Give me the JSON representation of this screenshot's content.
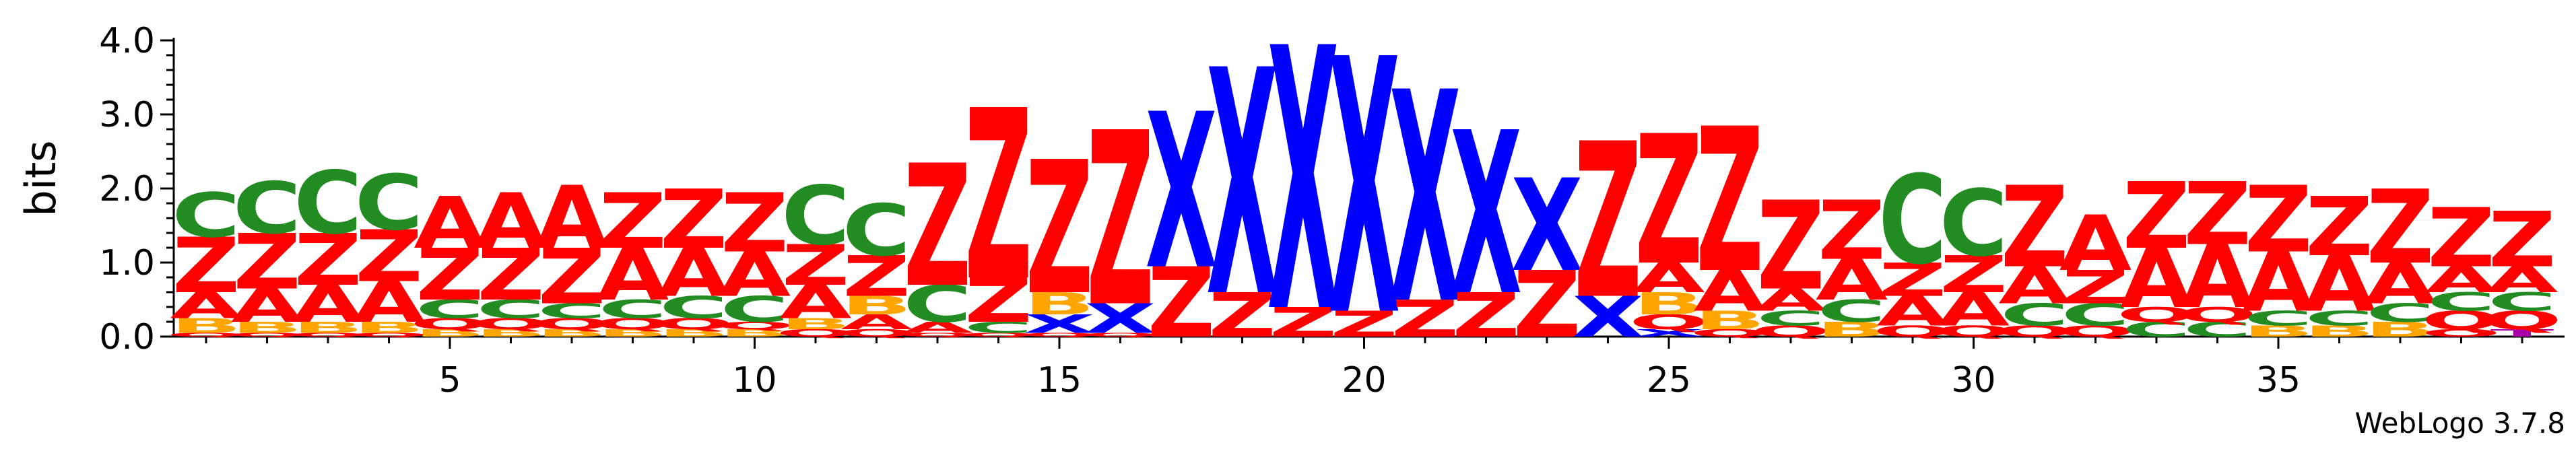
{
  "chart_data": {
    "type": "sequence-logo",
    "ylabel": "bits",
    "ylim": [
      0,
      4.0
    ],
    "y_ticks": [
      "0.0",
      "1.0",
      "2.0",
      "3.0",
      "4.0"
    ],
    "x_ticks": [
      "5",
      "10",
      "15",
      "20",
      "25",
      "30",
      "35"
    ],
    "positions": [
      1,
      2,
      3,
      4,
      5,
      6,
      7,
      8,
      9,
      10,
      11,
      12,
      13,
      14,
      15,
      16,
      17,
      18,
      19,
      20,
      21,
      22,
      23,
      24,
      25,
      26,
      27,
      28,
      29,
      30,
      31,
      32,
      33,
      34,
      35,
      36,
      37,
      38,
      39
    ],
    "colors": {
      "A": "#ff0000",
      "Z": "#ff0000",
      "C": "#228b22",
      "X": "#0000ff",
      "B": "#ffa500",
      "Q": "#ff0000",
      "O": "#ff0000",
      "T": "#aa00aa"
    },
    "stacks": [
      [
        [
          "Q",
          0.05
        ],
        [
          "B",
          0.2
        ],
        [
          "A",
          0.35
        ],
        [
          "Z",
          0.75
        ],
        [
          "C",
          0.6
        ]
      ],
      [
        [
          "Q",
          0.05
        ],
        [
          "B",
          0.15
        ],
        [
          "A",
          0.45
        ],
        [
          "Z",
          0.75
        ],
        [
          "C",
          0.7
        ]
      ],
      [
        [
          "Q",
          0.05
        ],
        [
          "B",
          0.15
        ],
        [
          "A",
          0.5
        ],
        [
          "Z",
          0.7
        ],
        [
          "C",
          0.85
        ]
      ],
      [
        [
          "Q",
          0.05
        ],
        [
          "B",
          0.15
        ],
        [
          "A",
          0.55
        ],
        [
          "Z",
          0.7
        ],
        [
          "C",
          0.75
        ]
      ],
      [
        [
          "B",
          0.1
        ],
        [
          "Q",
          0.15
        ],
        [
          "C",
          0.25
        ],
        [
          "Z",
          0.7
        ],
        [
          "A",
          0.7
        ]
      ],
      [
        [
          "B",
          0.1
        ],
        [
          "Q",
          0.15
        ],
        [
          "C",
          0.25
        ],
        [
          "Z",
          0.7
        ],
        [
          "A",
          0.75
        ]
      ],
      [
        [
          "B",
          0.1
        ],
        [
          "Q",
          0.15
        ],
        [
          "C",
          0.2
        ],
        [
          "Z",
          0.75
        ],
        [
          "A",
          0.85
        ]
      ],
      [
        [
          "B",
          0.1
        ],
        [
          "Q",
          0.15
        ],
        [
          "C",
          0.25
        ],
        [
          "A",
          0.7
        ],
        [
          "Z",
          0.75
        ]
      ],
      [
        [
          "B",
          0.1
        ],
        [
          "Q",
          0.15
        ],
        [
          "C",
          0.3
        ],
        [
          "A",
          0.65
        ],
        [
          "Z",
          0.8
        ]
      ],
      [
        [
          "B",
          0.1
        ],
        [
          "Q",
          0.1
        ],
        [
          "C",
          0.35
        ],
        [
          "A",
          0.6
        ],
        [
          "Z",
          0.8
        ]
      ],
      [
        [
          "Q",
          0.1
        ],
        [
          "B",
          0.15
        ],
        [
          "A",
          0.45
        ],
        [
          "Z",
          0.55
        ],
        [
          "C",
          0.8
        ]
      ],
      [
        [
          "Q",
          0.1
        ],
        [
          "A",
          0.2
        ],
        [
          "B",
          0.25
        ],
        [
          "Z",
          0.55
        ],
        [
          "C",
          0.7
        ]
      ],
      [
        [
          "Q",
          0.05
        ],
        [
          "A",
          0.15
        ],
        [
          "C",
          0.5
        ],
        [
          "Z",
          1.65
        ]
      ],
      [
        [
          "Q",
          0.05
        ],
        [
          "C",
          0.15
        ],
        [
          "Z",
          0.6
        ],
        [
          "Z",
          2.3
        ]
      ],
      [
        [
          "Q",
          0.05
        ],
        [
          "X",
          0.25
        ],
        [
          "B",
          0.3
        ],
        [
          "Z",
          1.8
        ]
      ],
      [
        [
          "Q",
          0.05
        ],
        [
          "X",
          0.4
        ],
        [
          "Z",
          2.35
        ]
      ],
      [
        [
          "Z",
          0.95
        ],
        [
          "X",
          2.1
        ]
      ],
      [
        [
          "Z",
          0.6
        ],
        [
          "X",
          3.05
        ]
      ],
      [
        [
          "Z",
          0.4
        ],
        [
          "X",
          3.55
        ]
      ],
      [
        [
          "Z",
          0.35
        ],
        [
          "X",
          3.45
        ]
      ],
      [
        [
          "Z",
          0.5
        ],
        [
          "X",
          2.85
        ]
      ],
      [
        [
          "Z",
          0.6
        ],
        [
          "X",
          2.2
        ]
      ],
      [
        [
          "Z",
          0.9
        ],
        [
          "X",
          1.25
        ]
      ],
      [
        [
          "X",
          0.55
        ],
        [
          "Z",
          2.1
        ]
      ],
      [
        [
          "X",
          0.1
        ],
        [
          "Q",
          0.2
        ],
        [
          "B",
          0.3
        ],
        [
          "A",
          0.4
        ],
        [
          "Z",
          1.75
        ]
      ],
      [
        [
          "Q",
          0.1
        ],
        [
          "B",
          0.25
        ],
        [
          "A",
          0.55
        ],
        [
          "Z",
          1.95
        ]
      ],
      [
        [
          "Q",
          0.15
        ],
        [
          "C",
          0.2
        ],
        [
          "A",
          0.3
        ],
        [
          "Z",
          1.2
        ]
      ],
      [
        [
          "B",
          0.2
        ],
        [
          "C",
          0.3
        ],
        [
          "A",
          0.55
        ],
        [
          "Z",
          0.8
        ]
      ],
      [
        [
          "Q",
          0.15
        ],
        [
          "A",
          0.4
        ],
        [
          "Z",
          0.45
        ],
        [
          "C",
          1.2
        ]
      ],
      [
        [
          "Q",
          0.15
        ],
        [
          "A",
          0.45
        ],
        [
          "Z",
          0.5
        ],
        [
          "C",
          0.9
        ]
      ],
      [
        [
          "Q",
          0.15
        ],
        [
          "C",
          0.3
        ],
        [
          "A",
          0.5
        ],
        [
          "Z",
          1.1
        ]
      ],
      [
        [
          "Q",
          0.15
        ],
        [
          "C",
          0.3
        ],
        [
          "Z",
          0.45
        ],
        [
          "A",
          0.75
        ]
      ],
      [
        [
          "C",
          0.2
        ],
        [
          "Q",
          0.2
        ],
        [
          "A",
          0.8
        ],
        [
          "Z",
          0.9
        ]
      ],
      [
        [
          "C",
          0.2
        ],
        [
          "Q",
          0.2
        ],
        [
          "A",
          0.85
        ],
        [
          "Z",
          0.85
        ]
      ],
      [
        [
          "B",
          0.15
        ],
        [
          "C",
          0.2
        ],
        [
          "A",
          0.8
        ],
        [
          "Z",
          0.9
        ]
      ],
      [
        [
          "B",
          0.15
        ],
        [
          "C",
          0.2
        ],
        [
          "A",
          0.75
        ],
        [
          "Z",
          0.8
        ]
      ],
      [
        [
          "B",
          0.2
        ],
        [
          "C",
          0.25
        ],
        [
          "A",
          0.55
        ],
        [
          "Z",
          1.0
        ]
      ],
      [
        [
          "O",
          0.1
        ],
        [
          "Q",
          0.25
        ],
        [
          "C",
          0.25
        ],
        [
          "A",
          0.35
        ],
        [
          "Z",
          0.8
        ]
      ],
      [
        [
          "T",
          0.1
        ],
        [
          "Q",
          0.25
        ],
        [
          "C",
          0.25
        ],
        [
          "A",
          0.35
        ],
        [
          "Z",
          0.75
        ]
      ]
    ]
  },
  "credit": "WebLogo 3.7.8"
}
